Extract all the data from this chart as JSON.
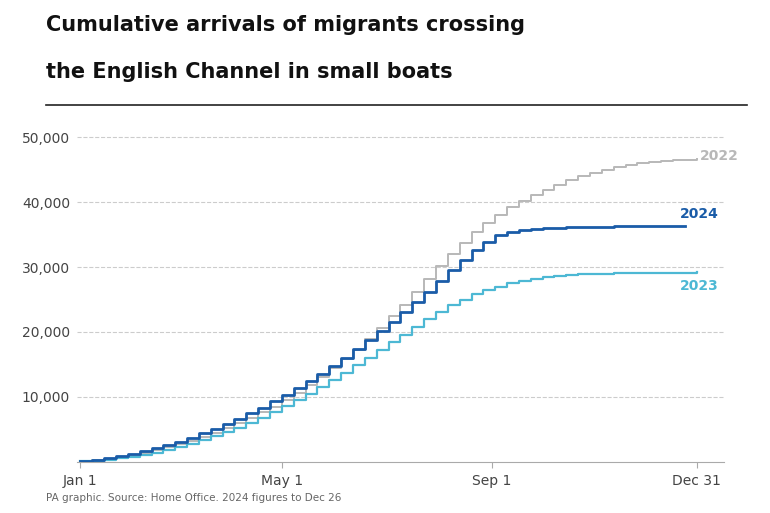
{
  "title_line1": "Cumulative arrivals of migrants crossing",
  "title_line2": "the English Channel in small boats",
  "source_text": "PA graphic. Source: Home Office. 2024 figures to Dec 26",
  "bg_color": "#ffffff",
  "title_color": "#111111",
  "grid_color": "#cccccc",
  "color_2022": "#b8b8b8",
  "color_2023": "#4db8d4",
  "color_2024": "#1a5ca8",
  "label_2022": "2022",
  "label_2023": "2023",
  "label_2024": "2024",
  "ylim": [
    0,
    53000
  ],
  "yticks": [
    10000,
    20000,
    30000,
    40000,
    50000
  ],
  "ytick_labels": [
    "10,000",
    "20,000",
    "30,000",
    "40,000",
    "50,000"
  ],
  "xtick_positions": [
    0,
    119,
    243,
    364
  ],
  "xtick_labels": [
    "Jan 1",
    "May 1",
    "Sep 1",
    "Dec 31"
  ],
  "data_2022_x": [
    0,
    7,
    14,
    21,
    28,
    35,
    42,
    49,
    56,
    63,
    70,
    77,
    84,
    91,
    98,
    105,
    112,
    119,
    126,
    133,
    140,
    147,
    154,
    161,
    168,
    175,
    182,
    189,
    196,
    203,
    210,
    217,
    224,
    231,
    238,
    245,
    252,
    259,
    266,
    273,
    280,
    287,
    294,
    301,
    308,
    315,
    322,
    329,
    336,
    343,
    350,
    357,
    364
  ],
  "data_2022_y": [
    100,
    250,
    450,
    700,
    1000,
    1350,
    1750,
    2200,
    2700,
    3200,
    3800,
    4500,
    5200,
    5900,
    6700,
    7600,
    8500,
    9500,
    10600,
    11800,
    13100,
    14400,
    15800,
    17300,
    18900,
    20600,
    22400,
    24200,
    26100,
    28100,
    30100,
    32000,
    33800,
    35400,
    36800,
    38100,
    39200,
    40200,
    41100,
    41900,
    42700,
    43400,
    44000,
    44500,
    45000,
    45400,
    45700,
    46000,
    46200,
    46350,
    46450,
    46550,
    46600
  ],
  "data_2023_x": [
    0,
    7,
    14,
    21,
    28,
    35,
    42,
    49,
    56,
    63,
    70,
    77,
    84,
    91,
    98,
    105,
    112,
    119,
    126,
    133,
    140,
    147,
    154,
    161,
    168,
    175,
    182,
    189,
    196,
    203,
    210,
    217,
    224,
    231,
    238,
    245,
    252,
    259,
    266,
    273,
    280,
    287,
    294,
    301,
    308,
    315,
    322,
    329,
    336,
    343,
    350,
    357,
    364
  ],
  "data_2023_y": [
    50,
    150,
    300,
    500,
    750,
    1050,
    1400,
    1800,
    2250,
    2750,
    3300,
    3900,
    4550,
    5250,
    6000,
    6800,
    7650,
    8550,
    9500,
    10500,
    11550,
    12600,
    13700,
    14850,
    16000,
    17200,
    18400,
    19600,
    20800,
    22000,
    23100,
    24100,
    25000,
    25800,
    26450,
    27000,
    27500,
    27900,
    28200,
    28450,
    28650,
    28800,
    28900,
    28970,
    29020,
    29060,
    29090,
    29110,
    29130,
    29150,
    29160,
    29170,
    29180
  ],
  "data_2024_x": [
    0,
    7,
    14,
    21,
    28,
    35,
    42,
    49,
    56,
    63,
    70,
    77,
    84,
    91,
    98,
    105,
    112,
    119,
    126,
    133,
    140,
    147,
    154,
    161,
    168,
    175,
    182,
    189,
    196,
    203,
    210,
    217,
    224,
    231,
    238,
    245,
    252,
    259,
    266,
    273,
    280,
    287,
    294,
    301,
    308,
    315,
    322,
    329,
    336,
    343,
    350,
    357
  ],
  "data_2024_y": [
    100,
    300,
    550,
    850,
    1200,
    1600,
    2050,
    2550,
    3100,
    3700,
    4350,
    5050,
    5800,
    6600,
    7450,
    8350,
    9300,
    10300,
    11350,
    12450,
    13600,
    14800,
    16050,
    17350,
    18700,
    20100,
    21550,
    23050,
    24600,
    26200,
    27850,
    29500,
    31100,
    32600,
    33900,
    34900,
    35400,
    35700,
    35900,
    36000,
    36080,
    36140,
    36190,
    36230,
    36260,
    36280,
    36290,
    36300,
    36310,
    36320,
    36330,
    36340
  ]
}
